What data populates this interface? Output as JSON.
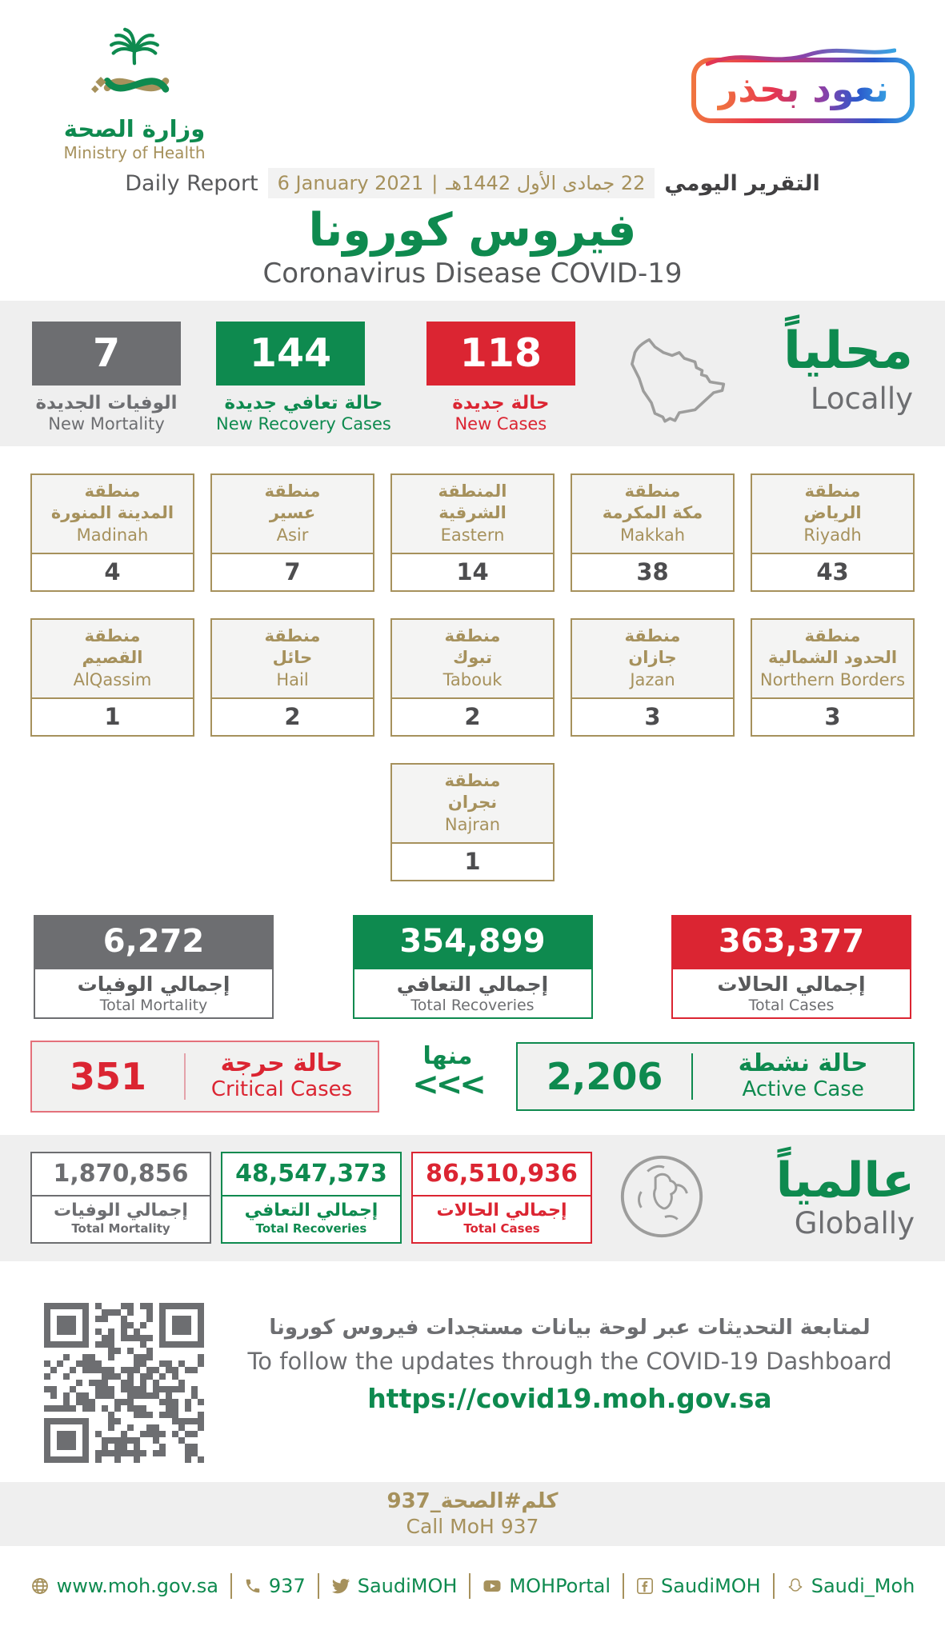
{
  "colors": {
    "green": "#0E8A4F",
    "red": "#DB2532",
    "gray": "#6D6E71",
    "gold": "#A6915C",
    "dark_text": "#58595B",
    "band_bg": "#EFEFEF",
    "critical_border": "#E4717B"
  },
  "header": {
    "logo_ar": "وزارة الصحة",
    "logo_en": "Ministry of Health",
    "badge_text": "نعود بحذر",
    "daily_report_en": "Daily Report",
    "date_en": "6 January 2021",
    "date_sep": "|",
    "date_ar": "22 جمادى الأول 1442هـ",
    "daily_report_ar": "التقرير اليومي",
    "title_ar": "فيروس كورونا",
    "title_en": "Coronavirus Disease COVID-19"
  },
  "locally": {
    "title_ar": "محلياً",
    "title_en": "Locally",
    "stats": [
      {
        "id": "new-mortality",
        "value": "7",
        "label_ar": "الوفيات الجديدة",
        "label_en": "New Mortality",
        "color": "#6D6E71"
      },
      {
        "id": "new-recovery",
        "value": "144",
        "label_ar": "حالة تعافي جديدة",
        "label_en": "New Recovery Cases",
        "color": "#0E8A4F"
      },
      {
        "id": "new-cases",
        "value": "118",
        "label_ar": "حالة جديدة",
        "label_en": "New Cases",
        "color": "#DB2532"
      }
    ]
  },
  "regions": {
    "rows": [
      [
        {
          "a1": "منطقة",
          "a2": "المدينة المنورة",
          "en": "Madinah",
          "value": "4"
        },
        {
          "a1": "منطقة",
          "a2": "عسير",
          "en": "Asir",
          "value": "7"
        },
        {
          "a1": "المنطقة",
          "a2": "الشرقية",
          "en": "Eastern",
          "value": "14"
        },
        {
          "a1": "منطقة",
          "a2": "مكة المكرمة",
          "en": "Makkah",
          "value": "38"
        },
        {
          "a1": "منطقة",
          "a2": "الرياض",
          "en": "Riyadh",
          "value": "43"
        }
      ],
      [
        {
          "a1": "منطقة",
          "a2": "القصيم",
          "en": "AlQassim",
          "value": "1"
        },
        {
          "a1": "منطقة",
          "a2": "حائل",
          "en": "Hail",
          "value": "2"
        },
        {
          "a1": "منطقة",
          "a2": "تبوك",
          "en": "Tabouk",
          "value": "2"
        },
        {
          "a1": "منطقة",
          "a2": "جازان",
          "en": "Jazan",
          "value": "3"
        },
        {
          "a1": "منطقة",
          "a2": "الحدود الشمالية",
          "en": "Northern Borders",
          "value": "3"
        }
      ],
      [
        {
          "a1": "منطقة",
          "a2": "نجران",
          "en": "Najran",
          "value": "1"
        }
      ]
    ]
  },
  "totals": {
    "items": [
      {
        "id": "total-mortality",
        "value": "6,272",
        "label_ar": "إجمالي الوفيات",
        "label_en": "Total Mortality",
        "color": "#6D6E71"
      },
      {
        "id": "total-recoveries",
        "value": "354,899",
        "label_ar": "إجمالي التعافي",
        "label_en": "Total Recoveries",
        "color": "#0E8A4F"
      },
      {
        "id": "total-cases",
        "value": "363,377",
        "label_ar": "إجمالي الحالات",
        "label_en": "Total Cases",
        "color": "#DB2532"
      }
    ]
  },
  "summary": {
    "critical": {
      "value": "351",
      "label_ar": "حالة حرجة",
      "label_en": "Critical Cases"
    },
    "of_which_ar": "منها",
    "chevrons": "<<<",
    "active": {
      "value": "2,206",
      "label_ar": "حالة نشطة",
      "label_en": "Active Case"
    }
  },
  "globally": {
    "title_ar": "عالمياً",
    "title_en": "Globally",
    "items": [
      {
        "id": "global-mortality",
        "value": "1,870,856",
        "label_ar": "إجمالي الوفيات",
        "label_en": "Total Mortality",
        "color": "#6D6E71"
      },
      {
        "id": "global-recoveries",
        "value": "48,547,373",
        "label_ar": "إجمالي التعافي",
        "label_en": "Total Recoveries",
        "color": "#0E8A4F"
      },
      {
        "id": "global-cases",
        "value": "86,510,936",
        "label_ar": "إجمالي الحالات",
        "label_en": "Total Cases",
        "color": "#DB2532"
      }
    ]
  },
  "dashboard": {
    "line_ar": "لمتابعة التحديثات عبر لوحة بيانات مستجدات فيروس كورونا",
    "line_en": "To follow the updates through the COVID-19 Dashboard",
    "url": "https://covid19.moh.gov.sa"
  },
  "call": {
    "ar": "كلم#الصحة_937",
    "en": "Call MoH 937"
  },
  "footer": {
    "links": [
      {
        "icon": "globe-icon",
        "label": "www.moh.gov.sa"
      },
      {
        "icon": "phone-icon",
        "label": "937"
      },
      {
        "icon": "twitter-icon",
        "label": "SaudiMOH"
      },
      {
        "icon": "youtube-icon",
        "label": "MOHPortal"
      },
      {
        "icon": "facebook-icon",
        "label": "SaudiMOH"
      },
      {
        "icon": "snapchat-icon",
        "label": "Saudi_Moh"
      }
    ]
  }
}
